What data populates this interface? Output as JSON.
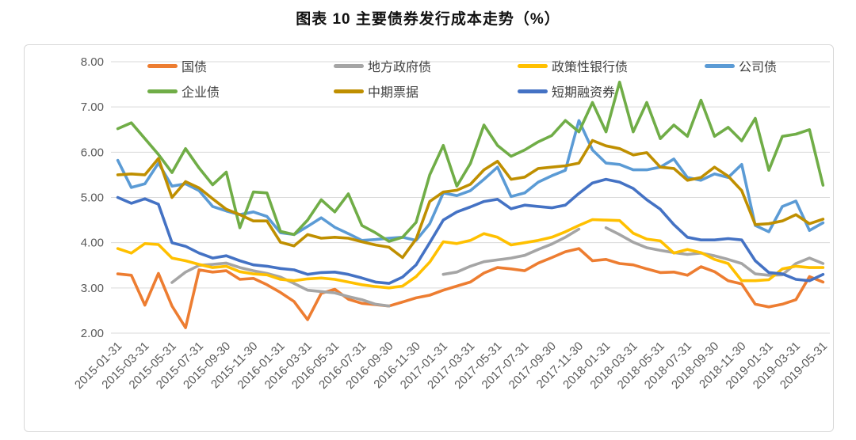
{
  "chart_data": {
    "type": "line",
    "title": "图表 10 主要债券发行成本走势（%）",
    "xlabel": "",
    "ylabel": "",
    "ylim": [
      2,
      8
    ],
    "y_ticks": [
      "8.00",
      "7.00",
      "6.00",
      "5.00",
      "4.00",
      "3.00",
      "2.00"
    ],
    "grid": "horizontal",
    "legend_position": "top-inside",
    "x_tick_every": 2,
    "x": [
      "2015-01-31",
      "2015-02-28",
      "2015-03-31",
      "2015-04-30",
      "2015-05-31",
      "2015-06-30",
      "2015-07-31",
      "2015-08-31",
      "2015-09-30",
      "2015-10-31",
      "2015-11-30",
      "2015-12-31",
      "2016-01-31",
      "2016-02-29",
      "2016-03-31",
      "2016-04-30",
      "2016-05-31",
      "2016-06-30",
      "2016-07-31",
      "2016-08-31",
      "2016-09-30",
      "2016-10-31",
      "2016-11-30",
      "2016-12-31",
      "2017-01-31",
      "2017-02-28",
      "2017-03-31",
      "2017-04-30",
      "2017-05-31",
      "2017-06-30",
      "2017-07-31",
      "2017-08-31",
      "2017-09-30",
      "2017-10-31",
      "2017-11-30",
      "2017-12-31",
      "2018-01-31",
      "2018-02-28",
      "2018-03-31",
      "2018-04-30",
      "2018-05-31",
      "2018-06-30",
      "2018-07-31",
      "2018-08-31",
      "2018-09-30",
      "2018-10-31",
      "2018-11-30",
      "2018-12-31",
      "2019-01-31",
      "2019-02-28",
      "2019-03-31",
      "2019-04-30",
      "2019-05-31"
    ],
    "x_tick_labels": [
      "2015-01-31",
      "2015-03-31",
      "2015-05-31",
      "2015-07-31",
      "2015-09-30",
      "2015-11-30",
      "2016-01-31",
      "2016-03-31",
      "2016-05-31",
      "2016-07-31",
      "2016-09-30",
      "2016-11-30",
      "2017-01-31",
      "2017-03-31",
      "2017-05-31",
      "2017-07-31",
      "2017-09-30",
      "2017-11-30",
      "2018-01-31",
      "2018-03-31",
      "2018-05-31",
      "2018-07-31",
      "2018-09-30",
      "2018-11-30",
      "2019-01-31",
      "2019-03-31",
      "2019-05-31"
    ],
    "series": [
      {
        "name": "国债",
        "color": "#ED7D31",
        "values": [
          3.31,
          3.28,
          2.62,
          3.32,
          2.6,
          2.12,
          3.4,
          3.35,
          3.38,
          3.19,
          3.21,
          3.07,
          2.9,
          2.7,
          2.3,
          2.88,
          2.97,
          2.75,
          2.66,
          2.63,
          2.6,
          2.69,
          2.78,
          2.84,
          2.95,
          3.04,
          3.13,
          3.33,
          3.45,
          3.42,
          3.38,
          3.55,
          3.67,
          3.8,
          3.87,
          3.6,
          3.63,
          3.54,
          3.51,
          3.42,
          3.34,
          3.35,
          3.28,
          3.47,
          3.36,
          3.16,
          3.09,
          2.64,
          2.58,
          2.64,
          2.74,
          3.25,
          3.13
        ]
      },
      {
        "name": "地方政府债",
        "color": "#A5A5A5",
        "values": [
          null,
          null,
          null,
          null,
          3.12,
          3.35,
          3.5,
          3.52,
          3.55,
          3.45,
          3.38,
          3.32,
          3.24,
          3.1,
          2.95,
          2.92,
          2.89,
          2.81,
          2.74,
          2.64,
          2.6,
          null,
          null,
          null,
          3.3,
          3.35,
          3.48,
          3.58,
          3.62,
          3.66,
          3.72,
          3.85,
          3.97,
          4.12,
          4.3,
          null,
          4.33,
          4.18,
          4.01,
          3.89,
          3.83,
          3.78,
          3.74,
          3.77,
          3.71,
          3.63,
          3.54,
          3.31,
          3.28,
          3.29,
          3.54,
          3.66,
          3.54
        ]
      },
      {
        "name": "政策性银行债",
        "color": "#FFC000",
        "values": [
          3.87,
          3.77,
          3.98,
          3.96,
          3.66,
          3.6,
          3.52,
          3.45,
          3.48,
          3.36,
          3.31,
          3.29,
          3.19,
          3.16,
          3.2,
          3.22,
          3.19,
          3.13,
          3.07,
          3.03,
          3.0,
          3.04,
          3.25,
          3.57,
          4.02,
          3.98,
          4.05,
          4.2,
          4.12,
          3.95,
          4.0,
          4.05,
          4.12,
          4.24,
          4.38,
          4.51,
          4.5,
          4.49,
          4.21,
          4.08,
          4.04,
          3.77,
          3.85,
          3.78,
          3.63,
          3.54,
          3.16,
          3.16,
          3.18,
          3.42,
          3.48,
          3.45,
          3.45
        ]
      },
      {
        "name": "公司债",
        "color": "#5B9BD5",
        "values": [
          5.82,
          5.22,
          5.3,
          5.76,
          5.25,
          5.3,
          5.15,
          4.8,
          4.7,
          4.62,
          4.68,
          4.58,
          4.22,
          4.18,
          4.36,
          4.55,
          4.34,
          4.2,
          4.05,
          4.07,
          4.1,
          4.12,
          4.05,
          4.42,
          5.1,
          5.04,
          5.15,
          5.4,
          5.67,
          5.02,
          5.1,
          5.34,
          5.48,
          5.6,
          6.7,
          6.05,
          5.76,
          5.73,
          5.61,
          5.61,
          5.67,
          5.85,
          5.44,
          5.38,
          5.52,
          5.44,
          5.73,
          4.38,
          4.24,
          4.8,
          4.92,
          4.27,
          4.44
        ]
      },
      {
        "name": "企业债",
        "color": "#70AD47",
        "values": [
          6.52,
          6.65,
          6.3,
          5.95,
          5.55,
          6.08,
          5.65,
          5.28,
          5.56,
          4.33,
          5.12,
          5.1,
          4.25,
          4.18,
          4.5,
          4.95,
          4.68,
          5.08,
          4.38,
          4.22,
          4.03,
          4.12,
          4.45,
          5.5,
          6.15,
          5.25,
          5.75,
          6.6,
          6.15,
          5.91,
          6.05,
          6.23,
          6.37,
          6.7,
          6.45,
          7.1,
          6.45,
          7.55,
          6.45,
          7.1,
          6.3,
          6.6,
          6.35,
          7.15,
          6.35,
          6.55,
          6.25,
          6.75,
          5.6,
          6.35,
          6.4,
          6.5,
          5.27
        ]
      },
      {
        "name": "中期票据",
        "color": "#BF8F00",
        "values": [
          5.5,
          5.52,
          5.5,
          5.86,
          5.0,
          5.35,
          5.21,
          4.97,
          4.74,
          4.62,
          4.48,
          4.48,
          4.01,
          3.93,
          4.18,
          4.1,
          4.12,
          4.1,
          4.02,
          3.95,
          3.9,
          3.67,
          4.08,
          4.91,
          5.12,
          5.16,
          5.29,
          5.61,
          5.8,
          5.4,
          5.45,
          5.64,
          5.67,
          5.7,
          5.76,
          6.26,
          6.14,
          6.08,
          5.94,
          5.99,
          5.67,
          5.64,
          5.38,
          5.44,
          5.67,
          5.47,
          5.15,
          4.4,
          4.42,
          4.48,
          4.62,
          4.42,
          4.52
        ]
      },
      {
        "name": "短期融资券",
        "color": "#4472C4",
        "values": [
          5.0,
          4.87,
          4.97,
          4.85,
          4.0,
          3.92,
          3.77,
          3.66,
          3.71,
          3.6,
          3.51,
          3.48,
          3.43,
          3.4,
          3.3,
          3.34,
          3.35,
          3.3,
          3.22,
          3.13,
          3.1,
          3.24,
          3.51,
          4.0,
          4.5,
          4.68,
          4.79,
          4.91,
          4.96,
          4.75,
          4.83,
          4.8,
          4.77,
          4.83,
          5.09,
          5.32,
          5.4,
          5.34,
          5.2,
          4.95,
          4.74,
          4.4,
          4.12,
          4.06,
          4.06,
          4.09,
          4.06,
          3.6,
          3.34,
          3.31,
          3.19,
          3.16,
          3.3
        ]
      }
    ]
  }
}
